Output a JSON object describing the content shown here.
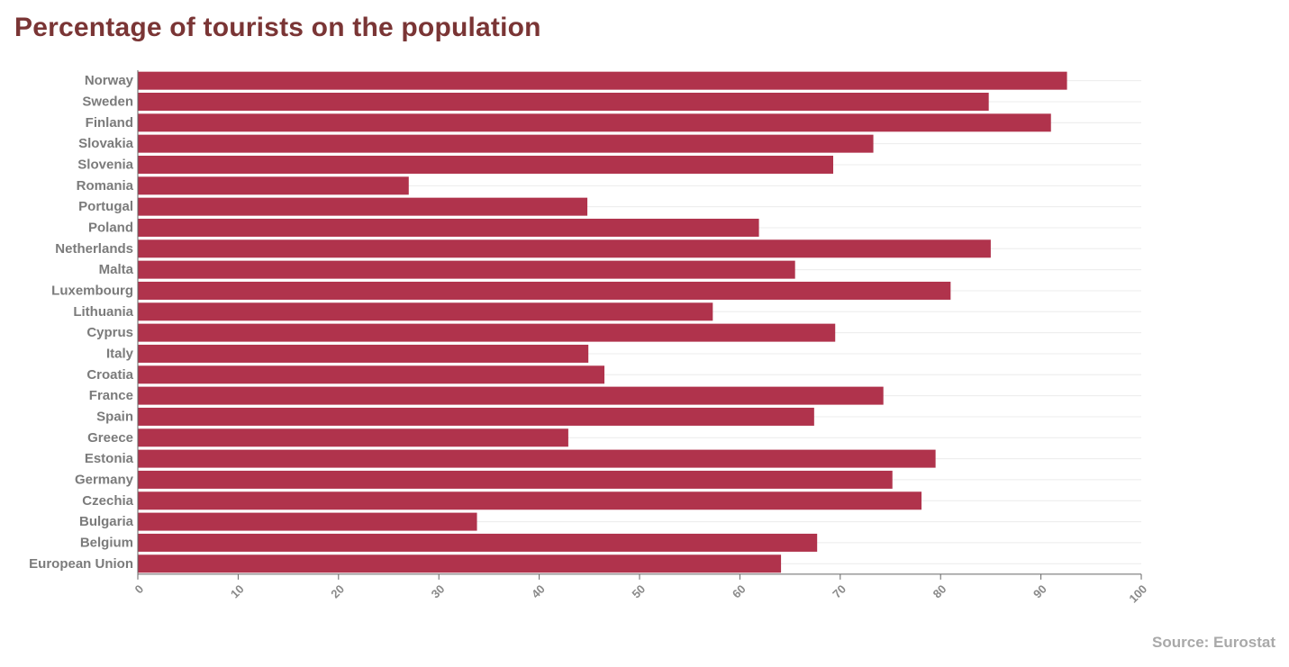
{
  "page": {
    "title": "Percentage of tourists on the population",
    "source": "Source: Eurostat"
  },
  "colors": {
    "bar": "#b0334c",
    "title": "#7a3535"
  },
  "chart_data": {
    "type": "bar",
    "orientation": "horizontal",
    "title": "Percentage of tourists on the population",
    "xlabel": "",
    "ylabel": "",
    "xlim": [
      0,
      100
    ],
    "ticks": [
      0,
      10,
      20,
      30,
      40,
      50,
      60,
      70,
      80,
      90,
      100
    ],
    "grid": true,
    "categories": [
      "Norway",
      "Sweden",
      "Finland",
      "Slovakia",
      "Slovenia",
      "Romania",
      "Portugal",
      "Poland",
      "Netherlands",
      "Malta",
      "Luxembourg",
      "Lithuania",
      "Cyprus",
      "Italy",
      "Croatia",
      "France",
      "Spain",
      "Greece",
      "Estonia",
      "Germany",
      "Czechia",
      "Bulgaria",
      "Belgium",
      "European Union"
    ],
    "values": [
      92.6,
      84.8,
      91.0,
      73.3,
      69.3,
      27.0,
      44.8,
      61.9,
      85.0,
      65.5,
      81.0,
      57.3,
      69.5,
      44.9,
      46.5,
      74.3,
      67.4,
      42.9,
      79.5,
      75.2,
      78.1,
      33.8,
      67.7,
      64.1
    ]
  }
}
